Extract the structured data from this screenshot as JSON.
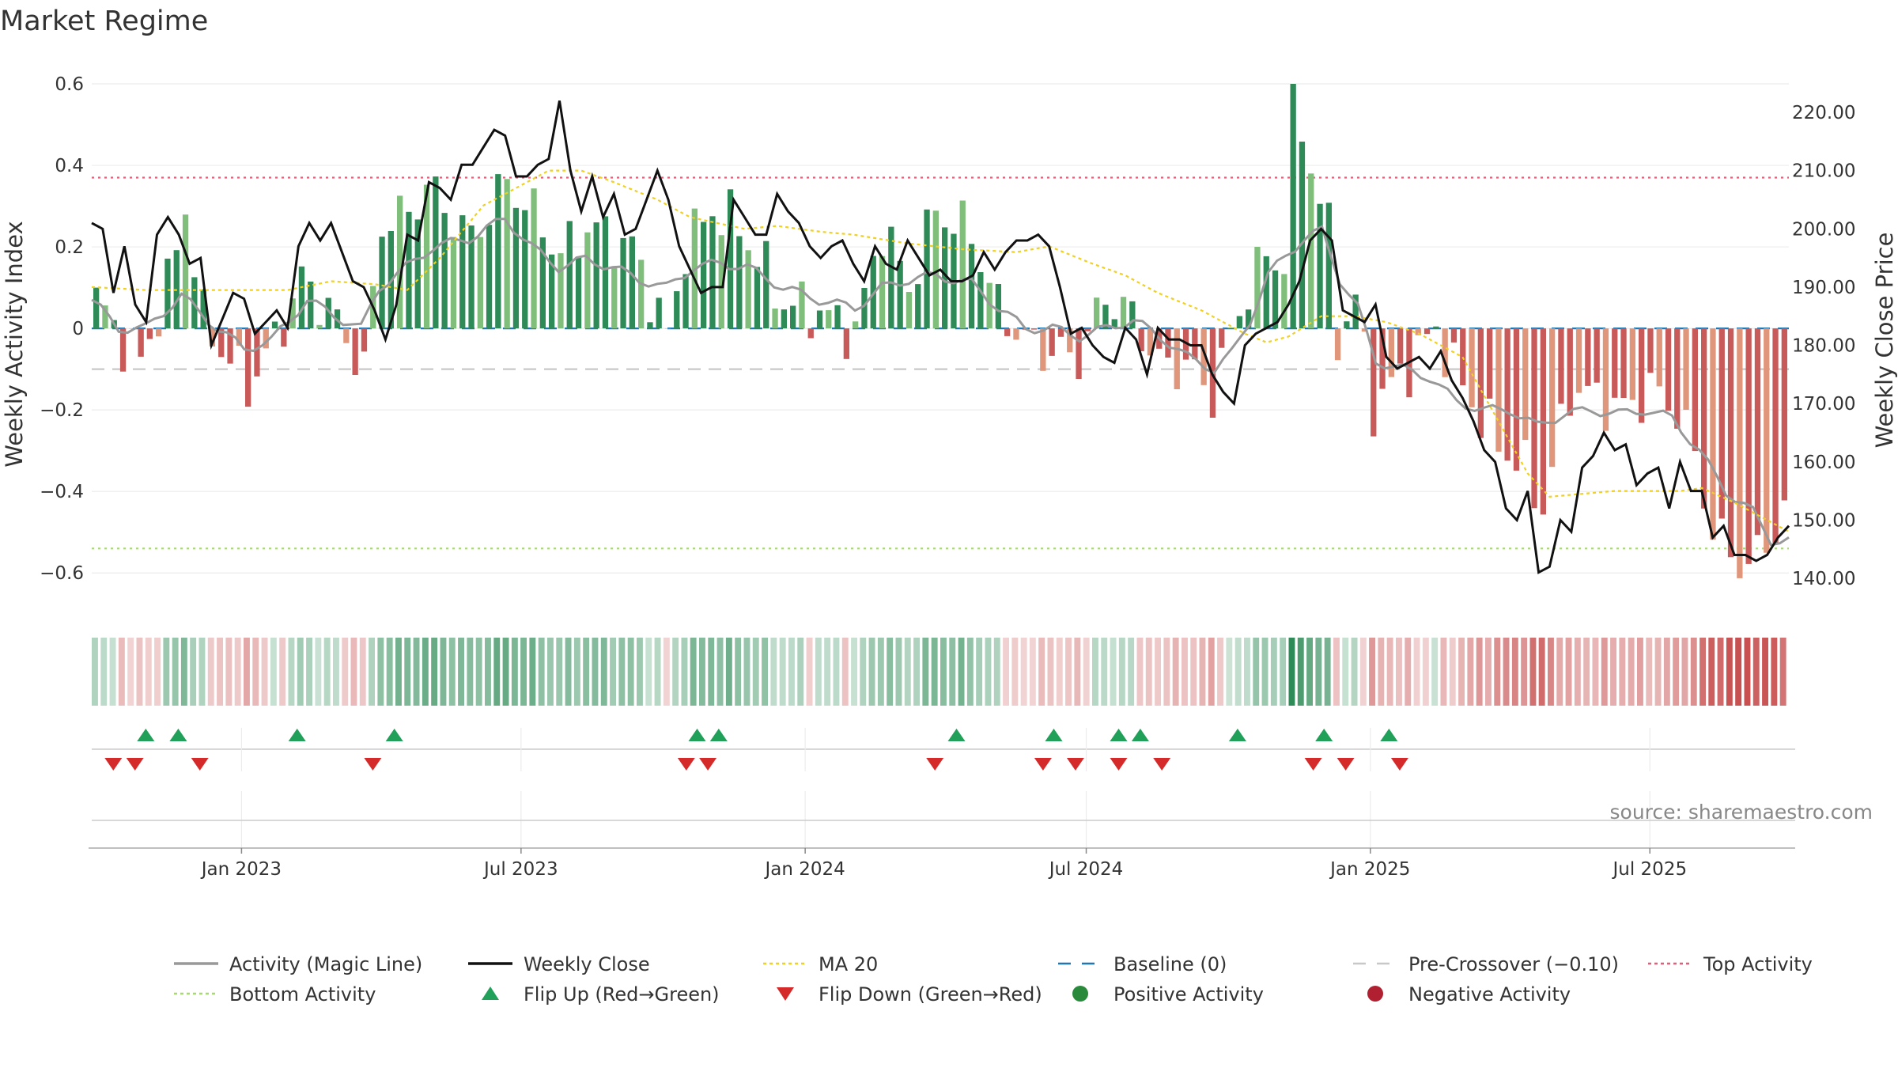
{
  "chart_data": {
    "type": "bar",
    "title": "Market Regime",
    "source": "source: sharemaestro.com",
    "ylabel_left": "Weekly Activity Index",
    "ylabel_right": "Weekly Close Price",
    "x_start": "2022-09-26",
    "x_end": "2025-09-29",
    "x_ticks": [
      {
        "date": "2023-01-01",
        "label": "Jan 2023"
      },
      {
        "date": "2023-07-01",
        "label": "Jul 2023"
      },
      {
        "date": "2024-01-01",
        "label": "Jan 2024"
      },
      {
        "date": "2024-07-01",
        "label": "Jul 2024"
      },
      {
        "date": "2025-01-01",
        "label": "Jan 2025"
      },
      {
        "date": "2025-07-01",
        "label": "Jul 2025"
      }
    ],
    "ylim_left": [
      -0.65,
      0.6
    ],
    "ylim_right": [
      135,
      220
    ],
    "yticks_left": [
      {
        "v": 0.6,
        "label": "0.6"
      },
      {
        "v": 0.4,
        "label": "0.4"
      },
      {
        "v": 0.2,
        "label": "0.2"
      },
      {
        "v": 0,
        "label": "0"
      },
      {
        "v": -0.2,
        "label": "−0.2"
      },
      {
        "v": -0.4,
        "label": "−0.4"
      },
      {
        "v": -0.6,
        "label": "−0.6"
      }
    ],
    "yticks_right": [
      {
        "v": 220,
        "label": "220.00"
      },
      {
        "v": 210,
        "label": "210.00"
      },
      {
        "v": 200,
        "label": "200.00"
      },
      {
        "v": 190,
        "label": "190.00"
      },
      {
        "v": 180,
        "label": "180.00"
      },
      {
        "v": 170,
        "label": "170.00"
      },
      {
        "v": 160,
        "label": "160.00"
      },
      {
        "v": 150,
        "label": "150.00"
      },
      {
        "v": 140,
        "label": "140.00"
      }
    ],
    "reference_lines": {
      "top_activity": 0.37,
      "pre_crossover": -0.1,
      "bottom_activity": -0.54,
      "baseline": 0
    },
    "activity_anchors": [
      [
        0,
        0.07
      ],
      [
        3,
        -0.03
      ],
      [
        5,
        -0.08
      ],
      [
        8,
        0.1
      ],
      [
        10,
        0.3
      ],
      [
        12,
        0.02
      ],
      [
        15,
        -0.08
      ],
      [
        17,
        -0.14
      ],
      [
        20,
        -0.03
      ],
      [
        23,
        0.12
      ],
      [
        26,
        0.05
      ],
      [
        30,
        -0.1
      ],
      [
        32,
        0.26
      ],
      [
        35,
        0.28
      ],
      [
        37,
        0.35
      ],
      [
        42,
        0.22
      ],
      [
        46,
        0.36
      ],
      [
        49,
        0.28
      ],
      [
        52,
        0.18
      ],
      [
        55,
        0.25
      ],
      [
        60,
        0.2
      ],
      [
        64,
        -0.02
      ],
      [
        66,
        0.2
      ],
      [
        69,
        0.29
      ],
      [
        72,
        0.25
      ],
      [
        77,
        0.06
      ],
      [
        81,
        0.04
      ],
      [
        85,
        -0.01
      ],
      [
        88,
        0.25
      ],
      [
        91,
        0.1
      ],
      [
        94,
        0.29
      ],
      [
        98,
        0.23
      ],
      [
        101,
        0.05
      ],
      [
        104,
        -0.03
      ],
      [
        107,
        -0.06
      ],
      [
        110,
        -0.07
      ],
      [
        113,
        0.08
      ],
      [
        116,
        0.03
      ],
      [
        119,
        -0.09
      ],
      [
        122,
        -0.09
      ],
      [
        125,
        -0.16
      ],
      [
        128,
        0.05
      ],
      [
        131,
        0.18
      ],
      [
        133,
        0.16
      ],
      [
        134,
        0.6
      ],
      [
        136,
        0.38
      ],
      [
        138,
        0.24
      ],
      [
        139,
        -0.02
      ],
      [
        141,
        0.07
      ],
      [
        143,
        -0.19
      ],
      [
        147,
        -0.09
      ],
      [
        150,
        0.0
      ],
      [
        152,
        -0.1
      ],
      [
        155,
        -0.22
      ],
      [
        157,
        -0.28
      ],
      [
        160,
        -0.35
      ],
      [
        162,
        -0.44
      ],
      [
        165,
        -0.15
      ],
      [
        168,
        -0.17
      ],
      [
        171,
        -0.2
      ],
      [
        174,
        -0.15
      ],
      [
        177,
        -0.2
      ],
      [
        179,
        -0.31
      ],
      [
        181,
        -0.5
      ],
      [
        183,
        -0.55
      ],
      [
        185,
        -0.59
      ],
      [
        187,
        -0.52
      ],
      [
        189,
        -0.46
      ]
    ],
    "close_anchors": [
      [
        0,
        201
      ],
      [
        1,
        200
      ],
      [
        2,
        189
      ],
      [
        3,
        197
      ],
      [
        4,
        187
      ],
      [
        5,
        184
      ],
      [
        6,
        199
      ],
      [
        7,
        202
      ],
      [
        8,
        199
      ],
      [
        9,
        194
      ],
      [
        10,
        195
      ],
      [
        11,
        180
      ],
      [
        13,
        189
      ],
      [
        14,
        188
      ],
      [
        15,
        182
      ],
      [
        16,
        184
      ],
      [
        17,
        186
      ],
      [
        18,
        183
      ],
      [
        19,
        197
      ],
      [
        20,
        201
      ],
      [
        21,
        198
      ],
      [
        22,
        201
      ],
      [
        23,
        196
      ],
      [
        24,
        191
      ],
      [
        25,
        190
      ],
      [
        26,
        186
      ],
      [
        27,
        181
      ],
      [
        28,
        187
      ],
      [
        29,
        199
      ],
      [
        30,
        198
      ],
      [
        31,
        208
      ],
      [
        32,
        207
      ],
      [
        33,
        205
      ],
      [
        34,
        211
      ],
      [
        35,
        211
      ],
      [
        36,
        214
      ],
      [
        37,
        217
      ],
      [
        38,
        216
      ],
      [
        39,
        209
      ],
      [
        40,
        209
      ],
      [
        41,
        211
      ],
      [
        42,
        212
      ],
      [
        43,
        222
      ],
      [
        44,
        210
      ],
      [
        45,
        203
      ],
      [
        46,
        209
      ],
      [
        47,
        202
      ],
      [
        48,
        206
      ],
      [
        49,
        199
      ],
      [
        50,
        200
      ],
      [
        51,
        205
      ],
      [
        52,
        210
      ],
      [
        53,
        205
      ],
      [
        54,
        197
      ],
      [
        55,
        193
      ],
      [
        56,
        189
      ],
      [
        57,
        190
      ],
      [
        58,
        190
      ],
      [
        59,
        205
      ],
      [
        60,
        202
      ],
      [
        61,
        199
      ],
      [
        62,
        199
      ],
      [
        63,
        206
      ],
      [
        64,
        203
      ],
      [
        65,
        201
      ],
      [
        66,
        197
      ],
      [
        67,
        195
      ],
      [
        68,
        197
      ],
      [
        69,
        198
      ],
      [
        70,
        194
      ],
      [
        71,
        191
      ],
      [
        72,
        197
      ],
      [
        73,
        194
      ],
      [
        74,
        193
      ],
      [
        75,
        198
      ],
      [
        76,
        195
      ],
      [
        77,
        192
      ],
      [
        78,
        193
      ],
      [
        79,
        191
      ],
      [
        80,
        191
      ],
      [
        81,
        192
      ],
      [
        82,
        196
      ],
      [
        83,
        193
      ],
      [
        84,
        196
      ],
      [
        85,
        198
      ],
      [
        86,
        198
      ],
      [
        87,
        199
      ],
      [
        88,
        197
      ],
      [
        89,
        190
      ],
      [
        90,
        182
      ],
      [
        91,
        183
      ],
      [
        92,
        180
      ],
      [
        93,
        178
      ],
      [
        94,
        177
      ],
      [
        95,
        183
      ],
      [
        96,
        181
      ],
      [
        97,
        175
      ],
      [
        98,
        183
      ],
      [
        99,
        181
      ],
      [
        100,
        181
      ],
      [
        101,
        180
      ],
      [
        102,
        180
      ],
      [
        103,
        175
      ],
      [
        104,
        172
      ],
      [
        105,
        170
      ],
      [
        106,
        180
      ],
      [
        107,
        182
      ],
      [
        108,
        183
      ],
      [
        109,
        184
      ],
      [
        110,
        187
      ],
      [
        111,
        191
      ],
      [
        112,
        198
      ],
      [
        113,
        200
      ],
      [
        114,
        198
      ],
      [
        115,
        186
      ],
      [
        116,
        185
      ],
      [
        117,
        184
      ],
      [
        118,
        187
      ],
      [
        119,
        178
      ],
      [
        120,
        176
      ],
      [
        121,
        177
      ],
      [
        122,
        178
      ],
      [
        123,
        176
      ],
      [
        124,
        179
      ],
      [
        125,
        174
      ],
      [
        126,
        171
      ],
      [
        127,
        167
      ],
      [
        128,
        162
      ],
      [
        129,
        160
      ],
      [
        130,
        152
      ],
      [
        131,
        150
      ],
      [
        132,
        155
      ],
      [
        133,
        141
      ],
      [
        134,
        142
      ],
      [
        135,
        150
      ],
      [
        136,
        148
      ],
      [
        137,
        159
      ],
      [
        138,
        161
      ],
      [
        139,
        165
      ],
      [
        140,
        162
      ],
      [
        141,
        163
      ],
      [
        142,
        156
      ],
      [
        143,
        158
      ],
      [
        144,
        159
      ],
      [
        145,
        152
      ],
      [
        146,
        160
      ],
      [
        147,
        155
      ],
      [
        148,
        155
      ],
      [
        149,
        147
      ],
      [
        150,
        149
      ],
      [
        151,
        144
      ],
      [
        152,
        144
      ],
      [
        153,
        143
      ],
      [
        154,
        144
      ],
      [
        155,
        147
      ],
      [
        156,
        149
      ]
    ],
    "ma20_anchors": [
      [
        0,
        190
      ],
      [
        5,
        189.5
      ],
      [
        10,
        189.5
      ],
      [
        15,
        189.5
      ],
      [
        18,
        189.5
      ],
      [
        22,
        191
      ],
      [
        26,
        190.5
      ],
      [
        29,
        189.5
      ],
      [
        32,
        195
      ],
      [
        36,
        204
      ],
      [
        40,
        208
      ],
      [
        42,
        210
      ],
      [
        45,
        210
      ],
      [
        48,
        208
      ],
      [
        52,
        205
      ],
      [
        55,
        202
      ],
      [
        60,
        200
      ],
      [
        63,
        200.5
      ],
      [
        67,
        199.5
      ],
      [
        70,
        199
      ],
      [
        75,
        197.5
      ],
      [
        80,
        196.5
      ],
      [
        85,
        196
      ],
      [
        88,
        197
      ],
      [
        92,
        194
      ],
      [
        95,
        192
      ],
      [
        98,
        189
      ],
      [
        102,
        186
      ],
      [
        106,
        182
      ],
      [
        108,
        180.5
      ],
      [
        110,
        181.5
      ],
      [
        113,
        185
      ],
      [
        116,
        185
      ],
      [
        119,
        184
      ],
      [
        122,
        182
      ],
      [
        126,
        178
      ],
      [
        129,
        168
      ],
      [
        132,
        158
      ],
      [
        134,
        154
      ],
      [
        137,
        154.5
      ],
      [
        140,
        155
      ],
      [
        143,
        155
      ],
      [
        146,
        155
      ],
      [
        148,
        155.5
      ],
      [
        151,
        153
      ],
      [
        154,
        150
      ],
      [
        156,
        148
      ]
    ],
    "magic_anchors": [
      [
        0,
        0.07
      ],
      [
        3,
        0.0
      ],
      [
        6,
        0.0
      ],
      [
        10,
        0.08
      ],
      [
        14,
        0.0
      ],
      [
        17,
        -0.05
      ],
      [
        20,
        -0.03
      ],
      [
        24,
        0.07
      ],
      [
        28,
        0.02
      ],
      [
        30,
        0.0
      ],
      [
        32,
        0.1
      ],
      [
        35,
        0.15
      ],
      [
        38,
        0.2
      ],
      [
        42,
        0.22
      ],
      [
        46,
        0.27
      ],
      [
        49,
        0.2
      ],
      [
        52,
        0.15
      ],
      [
        55,
        0.17
      ],
      [
        58,
        0.15
      ],
      [
        61,
        0.12
      ],
      [
        64,
        0.1
      ],
      [
        67,
        0.15
      ],
      [
        70,
        0.16
      ],
      [
        73,
        0.15
      ],
      [
        77,
        0.1
      ],
      [
        81,
        0.07
      ],
      [
        85,
        0.05
      ],
      [
        88,
        0.1
      ],
      [
        91,
        0.12
      ],
      [
        94,
        0.13
      ],
      [
        98,
        0.11
      ],
      [
        101,
        0.05
      ],
      [
        104,
        0.0
      ],
      [
        107,
        0.0
      ],
      [
        110,
        -0.02
      ],
      [
        113,
        0.0
      ],
      [
        116,
        0.02
      ],
      [
        119,
        -0.02
      ],
      [
        122,
        -0.07
      ],
      [
        125,
        -0.1
      ],
      [
        127,
        -0.06
      ],
      [
        129,
        0.02
      ],
      [
        131,
        0.13
      ],
      [
        133,
        0.18
      ],
      [
        135,
        0.22
      ],
      [
        137,
        0.24
      ],
      [
        139,
        0.12
      ],
      [
        141,
        0.05
      ],
      [
        143,
        -0.08
      ],
      [
        146,
        -0.1
      ],
      [
        149,
        -0.12
      ],
      [
        152,
        -0.18
      ],
      [
        155,
        -0.2
      ],
      [
        158,
        -0.2
      ],
      [
        161,
        -0.24
      ],
      [
        164,
        -0.21
      ],
      [
        167,
        -0.2
      ],
      [
        170,
        -0.21
      ],
      [
        173,
        -0.2
      ],
      [
        176,
        -0.22
      ],
      [
        179,
        -0.3
      ],
      [
        182,
        -0.4
      ],
      [
        185,
        -0.45
      ],
      [
        187,
        -0.52
      ],
      [
        189,
        -0.52
      ]
    ],
    "flip_up_dates": [
      "2022-10-31",
      "2022-11-21",
      "2023-02-06",
      "2023-04-10",
      "2023-10-23",
      "2023-11-06",
      "2024-04-08",
      "2024-06-10",
      "2024-07-22",
      "2024-08-05",
      "2024-10-07",
      "2024-12-02",
      "2025-01-13"
    ],
    "flip_down_dates": [
      "2022-10-10",
      "2022-10-24",
      "2022-12-05",
      "2023-03-27",
      "2023-10-16",
      "2023-10-30",
      "2024-03-25",
      "2024-06-03",
      "2024-06-24",
      "2024-07-22",
      "2024-08-19",
      "2024-11-25",
      "2024-12-16",
      "2025-01-20"
    ],
    "legend": [
      {
        "label": "Activity (Magic Line)",
        "kind": "line",
        "color": "#999999"
      },
      {
        "label": "Weekly Close",
        "kind": "line",
        "color": "#111111"
      },
      {
        "label": "MA 20",
        "kind": "dotted",
        "color": "#f0d020"
      },
      {
        "label": "Baseline (0)",
        "kind": "dashed",
        "color": "#1f77b4"
      },
      {
        "label": "Pre-Crossover (−0.10)",
        "kind": "dashed",
        "color": "#c8c8c8"
      },
      {
        "label": "Top Activity",
        "kind": "dotted",
        "color": "#e0607a"
      },
      {
        "label": "Bottom Activity",
        "kind": "dotted",
        "color": "#a8d870"
      },
      {
        "label": "Flip Up (Red→Green)",
        "kind": "tri-up",
        "color": "#21a05a"
      },
      {
        "label": "Flip Down (Green→Red)",
        "kind": "tri-down",
        "color": "#d42a2a"
      },
      {
        "label": "Positive Activity",
        "kind": "dot",
        "color": "#2a8a3c"
      },
      {
        "label": "Negative Activity",
        "kind": "dot",
        "color": "#b02030"
      }
    ],
    "colors": {
      "pos_strong": "#2e8b57",
      "pos_light": "#7fbf7b",
      "neg_strong": "#c85a5a",
      "neg_light": "#e0967a",
      "close": "#111111",
      "magic": "#999999",
      "ma20": "#f0d020",
      "baseline": "#1f77b4",
      "pre": "#c8c8c8",
      "top": "#e0607a",
      "bottom": "#a8d870",
      "flip_up": "#21a05a",
      "flip_down": "#d42a2a"
    }
  }
}
